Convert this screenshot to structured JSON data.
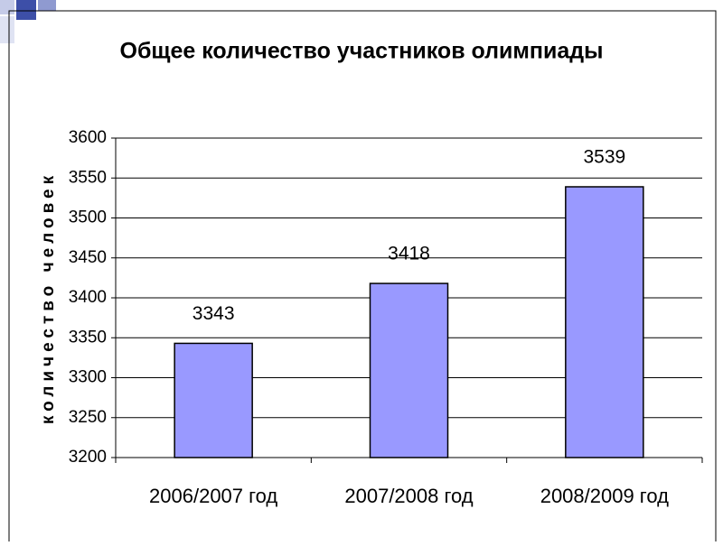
{
  "chart_data": {
    "type": "bar",
    "title": "Общее количество участников олимпиады",
    "y_label": "количество человек",
    "categories": [
      "2006/2007 год",
      "2007/2008 год",
      "2008/2009 год"
    ],
    "values": [
      3343,
      3418,
      3539
    ],
    "color": "#9999ff",
    "ylim": [
      3200,
      3600
    ],
    "yticks": [
      3200,
      3250,
      3300,
      3350,
      3400,
      3450,
      3500,
      3550,
      3600
    ],
    "grid": true
  }
}
